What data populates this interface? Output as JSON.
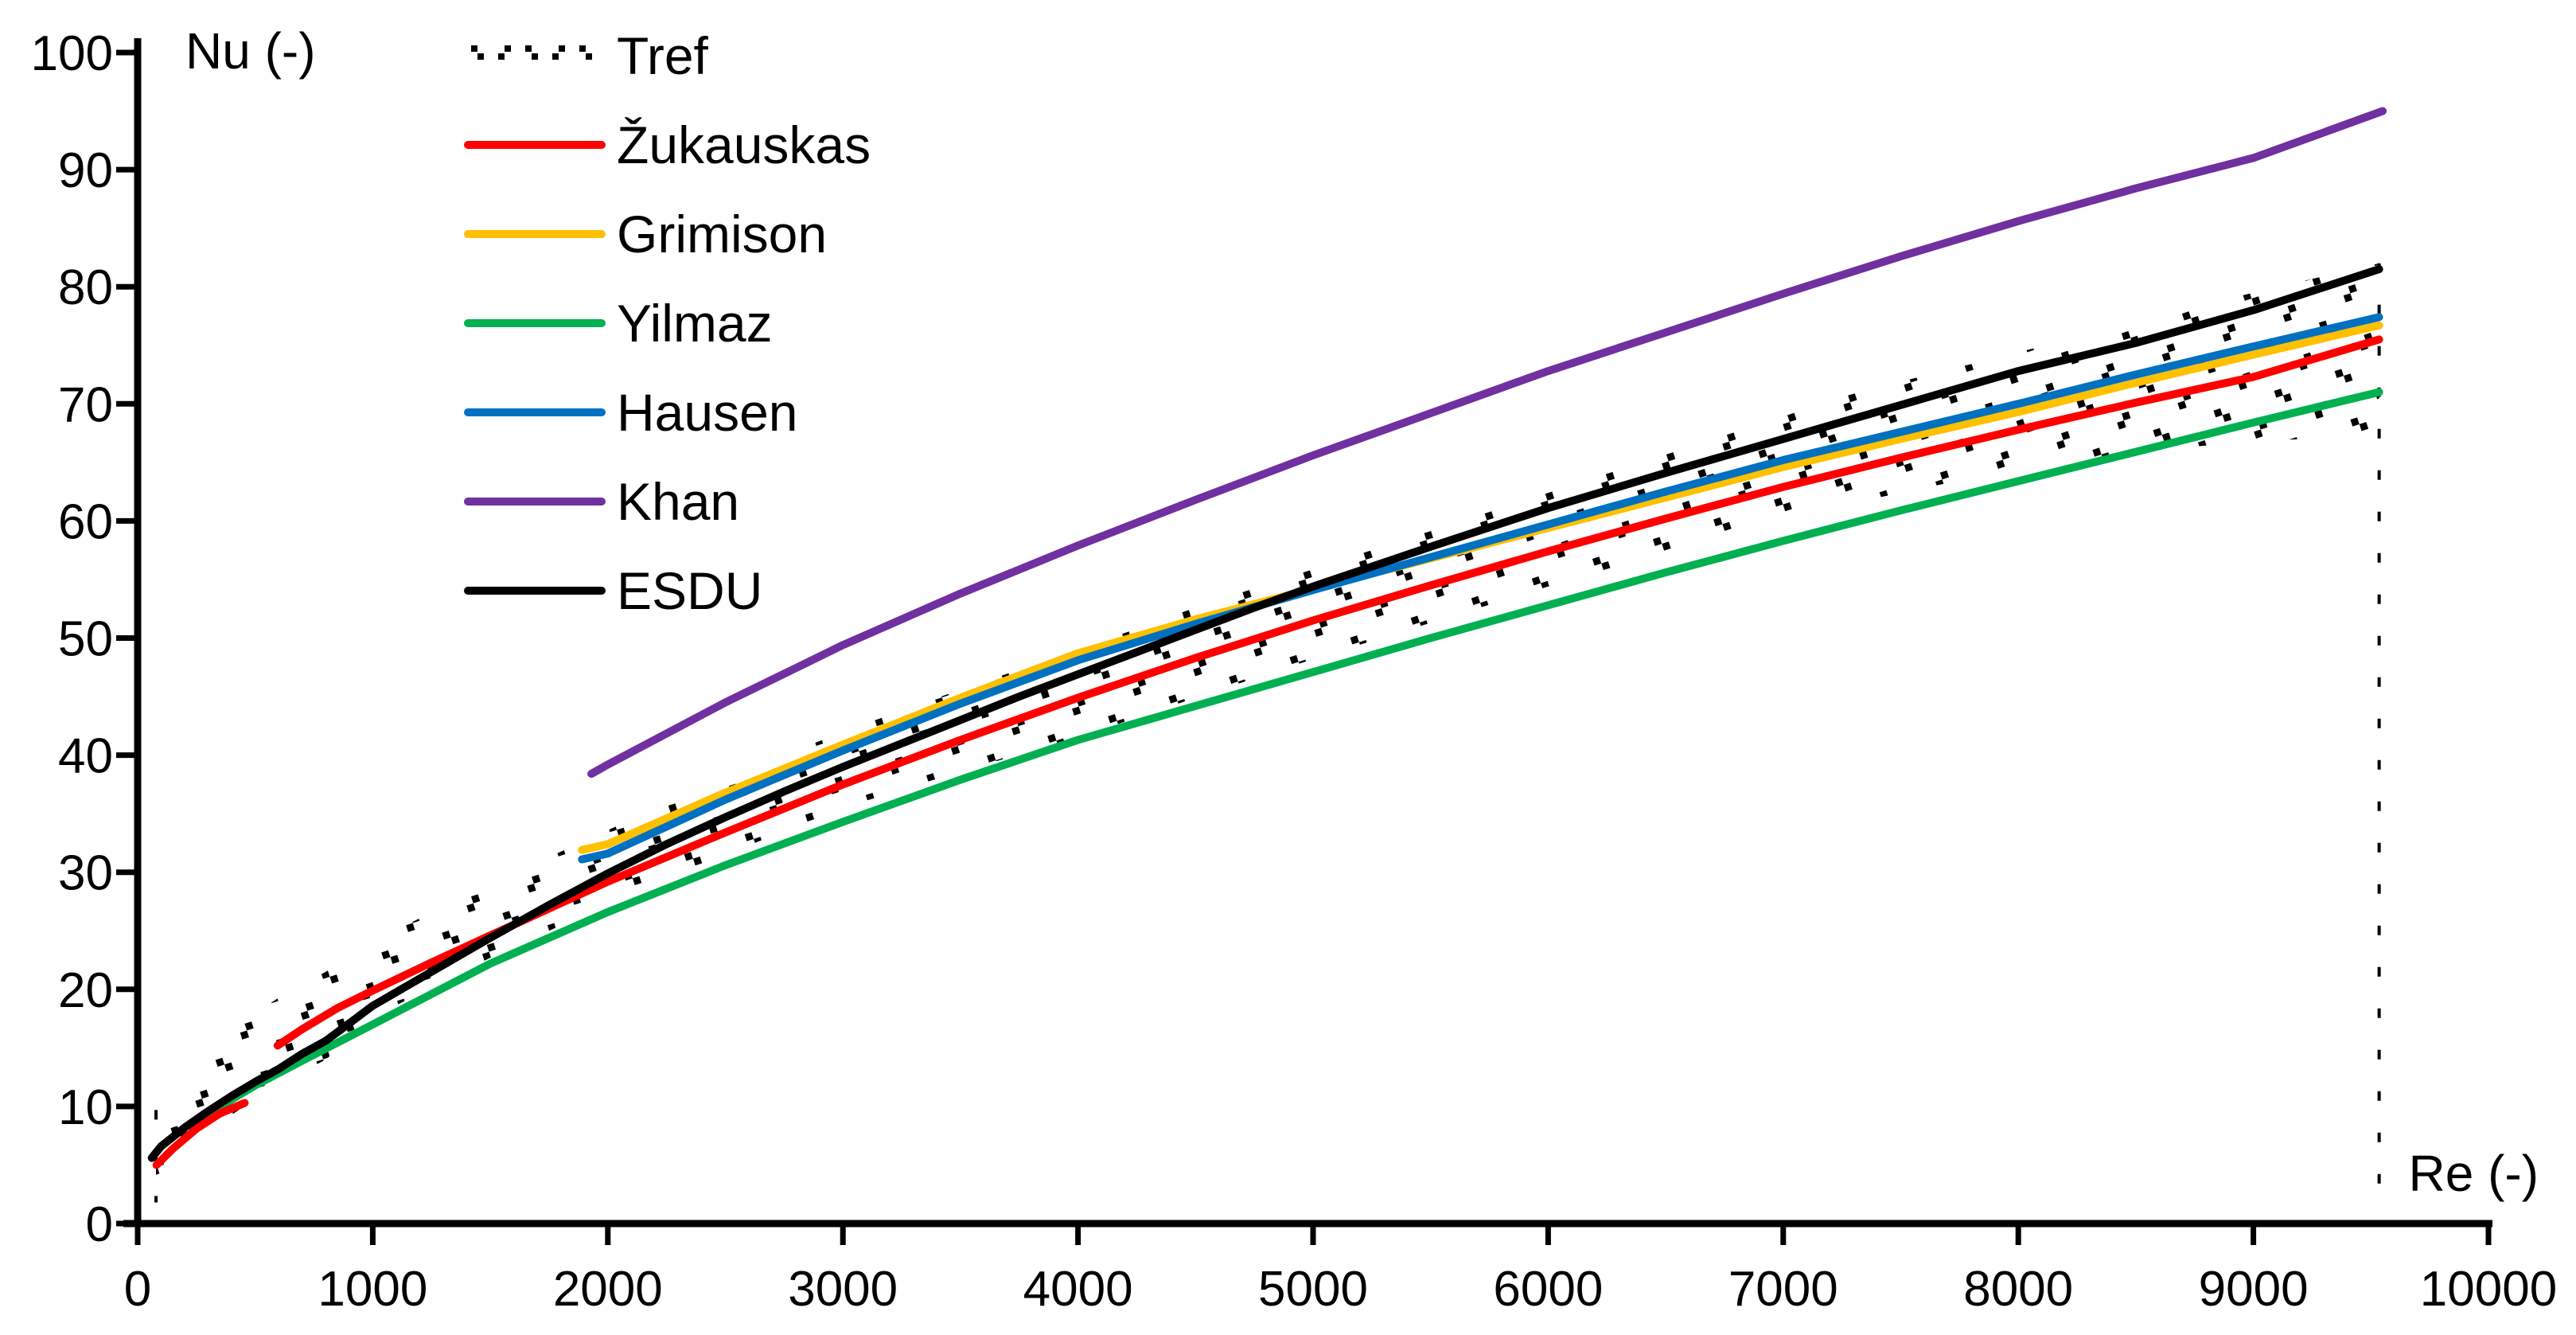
{
  "chart_data": {
    "type": "line",
    "title": "",
    "xlabel": "Re (-)",
    "ylabel": "Nu (-)",
    "xlim": [
      0,
      10000
    ],
    "ylim": [
      0,
      100
    ],
    "x_ticks": [
      "0",
      "1000",
      "2000",
      "3000",
      "4000",
      "5000",
      "6000",
      "7000",
      "8000",
      "9000",
      "10000"
    ],
    "y_ticks": [
      "0",
      "10",
      "20",
      "30",
      "40",
      "50",
      "60",
      "70",
      "80",
      "90",
      "100"
    ],
    "grid": false,
    "axis_color": "#000000",
    "legend_position": "top-left",
    "legend": [
      "Tref",
      "Žukauskas",
      "Grimison",
      "Yilmaz",
      "Hausen",
      "Khan",
      "ESDU"
    ],
    "band": {
      "name": "Tref",
      "color": "#000000",
      "pattern": "dotted-chevron-hatch",
      "x_range": [
        78,
        9535
      ],
      "top": [
        [
          78,
          9.5
        ],
        [
          135,
          11
        ],
        [
          250,
          13.5
        ],
        [
          400,
          16.5
        ],
        [
          600,
          19.3
        ],
        [
          800,
          21.5
        ],
        [
          1000,
          24
        ],
        [
          1250,
          26.6
        ],
        [
          1500,
          29
        ],
        [
          2000,
          33.6
        ],
        [
          2500,
          38
        ],
        [
          3000,
          42
        ],
        [
          3500,
          45.6
        ],
        [
          4000,
          49
        ],
        [
          4500,
          52.6
        ],
        [
          5000,
          56
        ],
        [
          5500,
          59.4
        ],
        [
          6000,
          62.8
        ],
        [
          6500,
          66.1
        ],
        [
          7000,
          69.3
        ],
        [
          7500,
          71.9
        ],
        [
          8000,
          74.4
        ],
        [
          8500,
          77
        ],
        [
          9000,
          79.5
        ],
        [
          9535,
          82
        ]
      ],
      "bottom": [
        [
          78,
          2.3
        ],
        [
          150,
          5
        ],
        [
          250,
          6.9
        ],
        [
          400,
          9.3
        ],
        [
          600,
          11.9
        ],
        [
          800,
          14
        ],
        [
          1000,
          17.6
        ],
        [
          1250,
          20.2
        ],
        [
          1500,
          22.7
        ],
        [
          2000,
          27.3
        ],
        [
          2500,
          31.5
        ],
        [
          3000,
          35.5
        ],
        [
          3500,
          38.6
        ],
        [
          4000,
          41.5
        ],
        [
          4500,
          44.9
        ],
        [
          5000,
          48.2
        ],
        [
          5500,
          51.3
        ],
        [
          6000,
          54.4
        ],
        [
          6500,
          57.4
        ],
        [
          7000,
          60.3
        ],
        [
          7500,
          62.4
        ],
        [
          8000,
          64.5
        ],
        [
          8500,
          65.9
        ],
        [
          9000,
          66.8
        ],
        [
          9535,
          67.3
        ]
      ]
    },
    "series": [
      {
        "name": "Žukauskas",
        "color": "#ff0000",
        "segments": [
          [
            [
              80,
              5
            ],
            [
              150,
              6.4
            ],
            [
              250,
              8.1
            ],
            [
              350,
              9.4
            ],
            [
              455,
              10.3
            ]
          ],
          [
            [
              595,
              15.2
            ],
            [
              700,
              16.6
            ],
            [
              850,
              18.4
            ],
            [
              1000,
              19.9
            ],
            [
              1250,
              22.3
            ],
            [
              1500,
              24.6
            ],
            [
              1750,
              26.9
            ],
            [
              2000,
              29.2
            ],
            [
              2500,
              33.4
            ],
            [
              3000,
              37.5
            ],
            [
              3500,
              41.3
            ],
            [
              4000,
              44.9
            ],
            [
              4500,
              48.3
            ],
            [
              5000,
              51.5
            ],
            [
              5500,
              54.5
            ],
            [
              6000,
              57.4
            ],
            [
              6500,
              60.2
            ],
            [
              7000,
              62.9
            ],
            [
              7500,
              65.4
            ],
            [
              8000,
              67.8
            ],
            [
              8500,
              70.1
            ],
            [
              9000,
              72.3
            ],
            [
              9535,
              75.5
            ]
          ]
        ]
      },
      {
        "name": "Grimison",
        "color": "#ffc000",
        "segments": [
          [
            [
              1890,
              31.9
            ],
            [
              2000,
              32.4
            ],
            [
              2500,
              36.8
            ],
            [
              3000,
              40.9
            ],
            [
              3500,
              44.9
            ],
            [
              4000,
              48.7
            ],
            [
              4500,
              51.6
            ],
            [
              5000,
              54.2
            ],
            [
              5500,
              56.8
            ],
            [
              6000,
              59.4
            ],
            [
              6500,
              62
            ],
            [
              7000,
              64.6
            ],
            [
              7500,
              67
            ],
            [
              8000,
              69.3
            ],
            [
              8500,
              71.8
            ],
            [
              9000,
              74.2
            ],
            [
              9535,
              76.7
            ]
          ]
        ]
      },
      {
        "name": "Yilmaz",
        "color": "#00b050",
        "segments": [
          [
            [
              230,
              8.3
            ],
            [
              350,
              10
            ],
            [
              500,
              11.8
            ],
            [
              700,
              13.9
            ],
            [
              1000,
              17
            ],
            [
              1250,
              19.6
            ],
            [
              1500,
              22.2
            ],
            [
              2000,
              26.6
            ],
            [
              2500,
              30.6
            ],
            [
              3000,
              34.3
            ],
            [
              3500,
              37.9
            ],
            [
              4000,
              41.3
            ],
            [
              4500,
              44.2
            ],
            [
              5000,
              47.1
            ],
            [
              5500,
              50
            ],
            [
              6000,
              52.8
            ],
            [
              6500,
              55.6
            ],
            [
              7000,
              58.3
            ],
            [
              7500,
              60.9
            ],
            [
              8000,
              63.4
            ],
            [
              8500,
              65.9
            ],
            [
              9000,
              68.4
            ],
            [
              9535,
              71
            ]
          ]
        ]
      },
      {
        "name": "Hausen",
        "color": "#0070c0",
        "segments": [
          [
            [
              1890,
              31.1
            ],
            [
              2000,
              31.6
            ],
            [
              2500,
              36.2
            ],
            [
              3000,
              40.4
            ],
            [
              3500,
              44.4
            ],
            [
              4000,
              48.1
            ],
            [
              4500,
              51.2
            ],
            [
              5000,
              54.1
            ],
            [
              5500,
              56.9
            ],
            [
              6000,
              59.7
            ],
            [
              6500,
              62.5
            ],
            [
              7000,
              65.2
            ],
            [
              7500,
              67.6
            ],
            [
              8000,
              70
            ],
            [
              8500,
              72.5
            ],
            [
              9000,
              74.9
            ],
            [
              9535,
              77.4
            ]
          ]
        ]
      },
      {
        "name": "Khan",
        "color": "#7030a0",
        "segments": [
          [
            [
              1930,
              38.4
            ],
            [
              2000,
              39.2
            ],
            [
              2500,
              44.5
            ],
            [
              3000,
              49.4
            ],
            [
              3500,
              53.8
            ],
            [
              4000,
              57.9
            ],
            [
              4500,
              61.8
            ],
            [
              5000,
              65.6
            ],
            [
              5500,
              69.2
            ],
            [
              6000,
              72.8
            ],
            [
              6500,
              76.1
            ],
            [
              7000,
              79.4
            ],
            [
              7500,
              82.6
            ],
            [
              8000,
              85.6
            ],
            [
              8500,
              88.4
            ],
            [
              9000,
              91
            ],
            [
              9550,
              95
            ]
          ]
        ]
      },
      {
        "name": "ESDU",
        "color": "#000000",
        "segments": [
          [
            [
              60,
              5.6
            ],
            [
              100,
              6.6
            ],
            [
              200,
              8.2
            ],
            [
              300,
              9.6
            ],
            [
              400,
              10.9
            ],
            [
              500,
              12.1
            ],
            [
              600,
              13.2
            ],
            [
              700,
              14.5
            ],
            [
              800,
              15.6
            ],
            [
              900,
              17.1
            ],
            [
              1000,
              18.6
            ],
            [
              1250,
              21.5
            ],
            [
              1500,
              24.4
            ],
            [
              1750,
              27.2
            ],
            [
              2000,
              29.9
            ],
            [
              2250,
              32.4
            ],
            [
              2500,
              34.7
            ],
            [
              2750,
              36.9
            ],
            [
              3000,
              39
            ],
            [
              3250,
              41
            ],
            [
              3500,
              43
            ],
            [
              3750,
              45
            ],
            [
              4000,
              46.9
            ],
            [
              4250,
              48.8
            ],
            [
              4500,
              50.7
            ],
            [
              4750,
              52.6
            ],
            [
              5000,
              54.4
            ],
            [
              5500,
              57.8
            ],
            [
              6000,
              61.1
            ],
            [
              6500,
              64.1
            ],
            [
              7000,
              67
            ],
            [
              7500,
              69.9
            ],
            [
              8000,
              72.8
            ],
            [
              8500,
              75.2
            ],
            [
              9000,
              78
            ],
            [
              9535,
              81.5
            ]
          ]
        ]
      }
    ]
  }
}
